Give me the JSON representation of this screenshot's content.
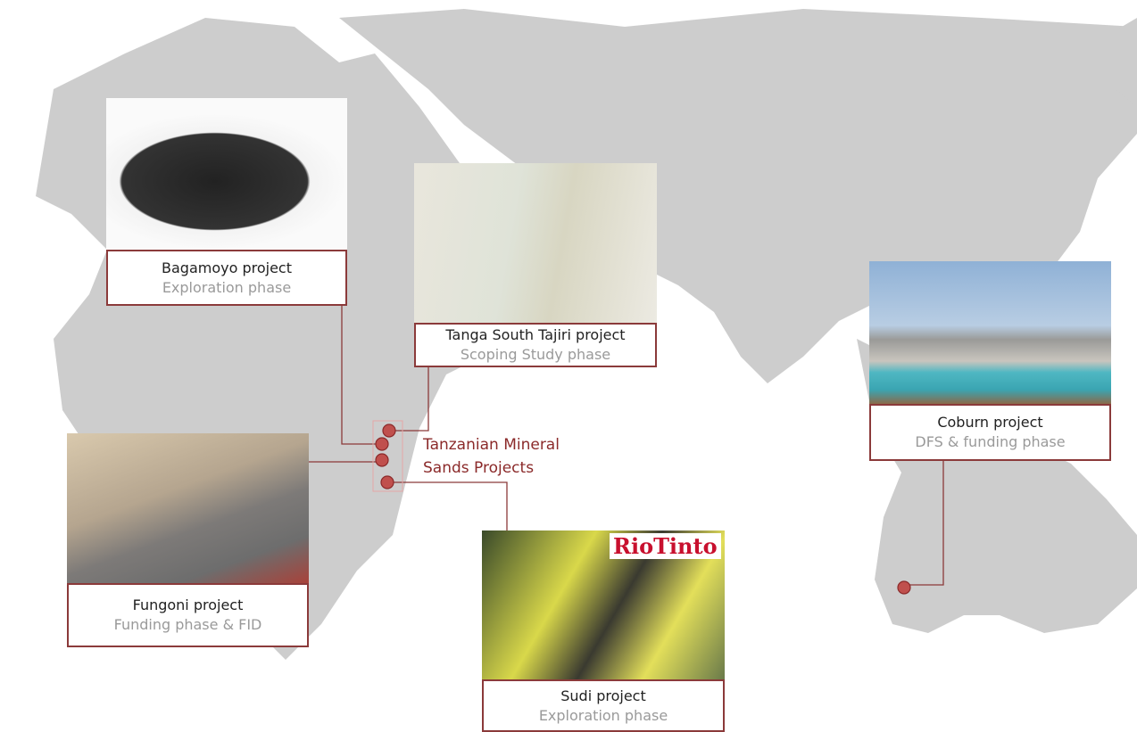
{
  "center_label": "Tanzanian Mineral Sands Projects",
  "logo": "RioTinto",
  "projects": [
    {
      "name": "Bagamoyo project",
      "phase": "Exploration phase"
    },
    {
      "name": "Tanga South Tajiri project",
      "phase": "Scoping Study phase"
    },
    {
      "name": "Coburn project",
      "phase": "DFS & funding phase"
    },
    {
      "name": "Fungoni project",
      "phase": "Funding phase & FID"
    },
    {
      "name": "Sudi project",
      "phase": "Exploration phase"
    }
  ]
}
